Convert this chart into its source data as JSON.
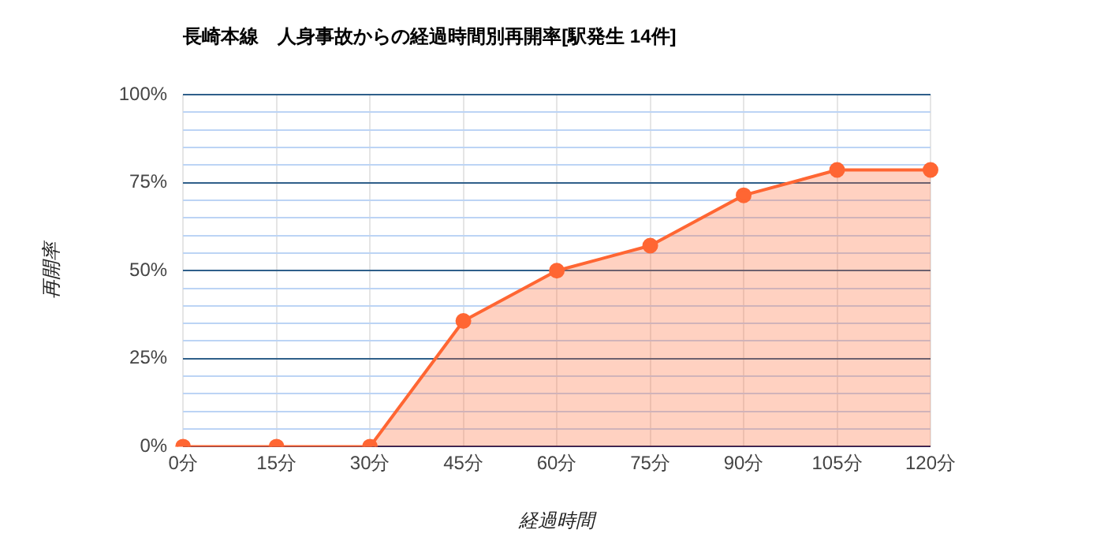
{
  "chart_data": {
    "type": "area",
    "title": "長崎本線　人身事故からの経過時間別再開率[駅発生 14件]",
    "xlabel": "経過時間",
    "ylabel": "再開率",
    "categories": [
      "0分",
      "15分",
      "30分",
      "45分",
      "60分",
      "75分",
      "90分",
      "105分",
      "120分"
    ],
    "series": [
      {
        "color": "#ff6633",
        "values": [
          0,
          0,
          0,
          35.7,
          50,
          57.1,
          71.4,
          78.6,
          78.6
        ]
      }
    ],
    "ylim": [
      0,
      100
    ],
    "yticks": [
      {
        "value": 0,
        "label": "0%"
      },
      {
        "value": 5,
        "label": null
      },
      {
        "value": 10,
        "label": null
      },
      {
        "value": 15,
        "label": null
      },
      {
        "value": 20,
        "label": null
      },
      {
        "value": 25,
        "label": "25%"
      },
      {
        "value": 30,
        "label": null
      },
      {
        "value": 35,
        "label": null
      },
      {
        "value": 40,
        "label": null
      },
      {
        "value": 45,
        "label": null
      },
      {
        "value": 50,
        "label": "50%"
      },
      {
        "value": 55,
        "label": null
      },
      {
        "value": 60,
        "label": null
      },
      {
        "value": 65,
        "label": null
      },
      {
        "value": 70,
        "label": null
      },
      {
        "value": 75,
        "label": "75%"
      },
      {
        "value": 80,
        "label": null
      },
      {
        "value": 85,
        "label": null
      },
      {
        "value": 90,
        "label": null
      },
      {
        "value": 95,
        "label": null
      },
      {
        "value": 100,
        "label": "100%"
      }
    ],
    "grid": true,
    "legend": false,
    "marker": "circle",
    "line_style": "solid"
  }
}
